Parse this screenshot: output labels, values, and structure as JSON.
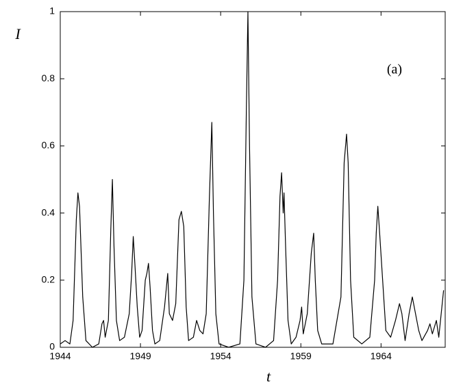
{
  "chart_data": {
    "type": "line",
    "x_label": "t",
    "y_label": "I",
    "annotation": "(a)",
    "x": [
      1944.0,
      1944.3,
      1944.6,
      1944.8,
      1945.0,
      1945.1,
      1945.2,
      1945.4,
      1945.6,
      1946.0,
      1946.4,
      1946.6,
      1946.7,
      1946.8,
      1947.0,
      1947.15,
      1947.25,
      1947.35,
      1947.5,
      1947.7,
      1948.0,
      1948.3,
      1948.45,
      1948.55,
      1948.65,
      1948.8,
      1948.95,
      1949.1,
      1949.3,
      1949.4,
      1949.5,
      1949.6,
      1949.75,
      1949.9,
      1950.2,
      1950.5,
      1950.7,
      1950.8,
      1951.0,
      1951.2,
      1951.4,
      1951.55,
      1951.7,
      1951.85,
      1952.0,
      1952.3,
      1952.5,
      1952.7,
      1952.9,
      1953.1,
      1953.3,
      1953.45,
      1953.55,
      1953.7,
      1953.9,
      1954.5,
      1955.2,
      1955.45,
      1955.6,
      1955.7,
      1955.8,
      1955.95,
      1956.2,
      1956.8,
      1957.3,
      1957.55,
      1957.7,
      1957.8,
      1957.9,
      1957.95,
      1958.05,
      1958.2,
      1958.4,
      1958.7,
      1958.95,
      1959.05,
      1959.15,
      1959.4,
      1959.65,
      1959.8,
      1959.9,
      1960.05,
      1960.3,
      1961.0,
      1961.5,
      1961.7,
      1961.85,
      1961.95,
      1962.1,
      1962.3,
      1962.8,
      1963.3,
      1963.6,
      1963.7,
      1963.8,
      1963.9,
      1964.1,
      1964.3,
      1964.6,
      1964.9,
      1965.15,
      1965.3,
      1965.5,
      1965.75,
      1965.95,
      1966.15,
      1966.35,
      1966.55,
      1966.9,
      1967.05,
      1967.2,
      1967.45,
      1967.6,
      1967.75,
      1967.9
    ],
    "series": [
      {
        "color": "#000000",
        "values": [
          0.01,
          0.02,
          0.01,
          0.08,
          0.38,
          0.46,
          0.42,
          0.15,
          0.02,
          0,
          0.01,
          0.07,
          0.08,
          0.03,
          0.08,
          0.35,
          0.5,
          0.3,
          0.08,
          0.02,
          0.03,
          0.1,
          0.22,
          0.33,
          0.25,
          0.12,
          0.03,
          0.05,
          0.2,
          0.22,
          0.25,
          0.18,
          0.05,
          0.01,
          0.02,
          0.12,
          0.22,
          0.1,
          0.08,
          0.13,
          0.38,
          0.405,
          0.36,
          0.12,
          0.02,
          0.03,
          0.08,
          0.05,
          0.04,
          0.1,
          0.45,
          0.67,
          0.4,
          0.1,
          0.01,
          0,
          0.01,
          0.2,
          0.7,
          1.0,
          0.6,
          0.15,
          0.01,
          0,
          0.02,
          0.2,
          0.45,
          0.52,
          0.4,
          0.46,
          0.3,
          0.08,
          0.01,
          0.03,
          0.08,
          0.12,
          0.04,
          0.1,
          0.28,
          0.34,
          0.2,
          0.05,
          0.01,
          0.01,
          0.15,
          0.55,
          0.635,
          0.55,
          0.2,
          0.03,
          0.01,
          0.03,
          0.2,
          0.34,
          0.42,
          0.35,
          0.2,
          0.05,
          0.03,
          0.08,
          0.13,
          0.1,
          0.02,
          0.1,
          0.15,
          0.1,
          0.05,
          0.02,
          0.05,
          0.07,
          0.04,
          0.08,
          0.03,
          0.1,
          0.17
        ]
      }
    ],
    "xlim": [
      1944,
      1968
    ],
    "xticks": [
      1944,
      1949,
      1954,
      1959,
      1964
    ],
    "ylim": [
      0,
      1
    ],
    "yticks": [
      0,
      0.2,
      0.4,
      0.6,
      0.8,
      1
    ]
  }
}
